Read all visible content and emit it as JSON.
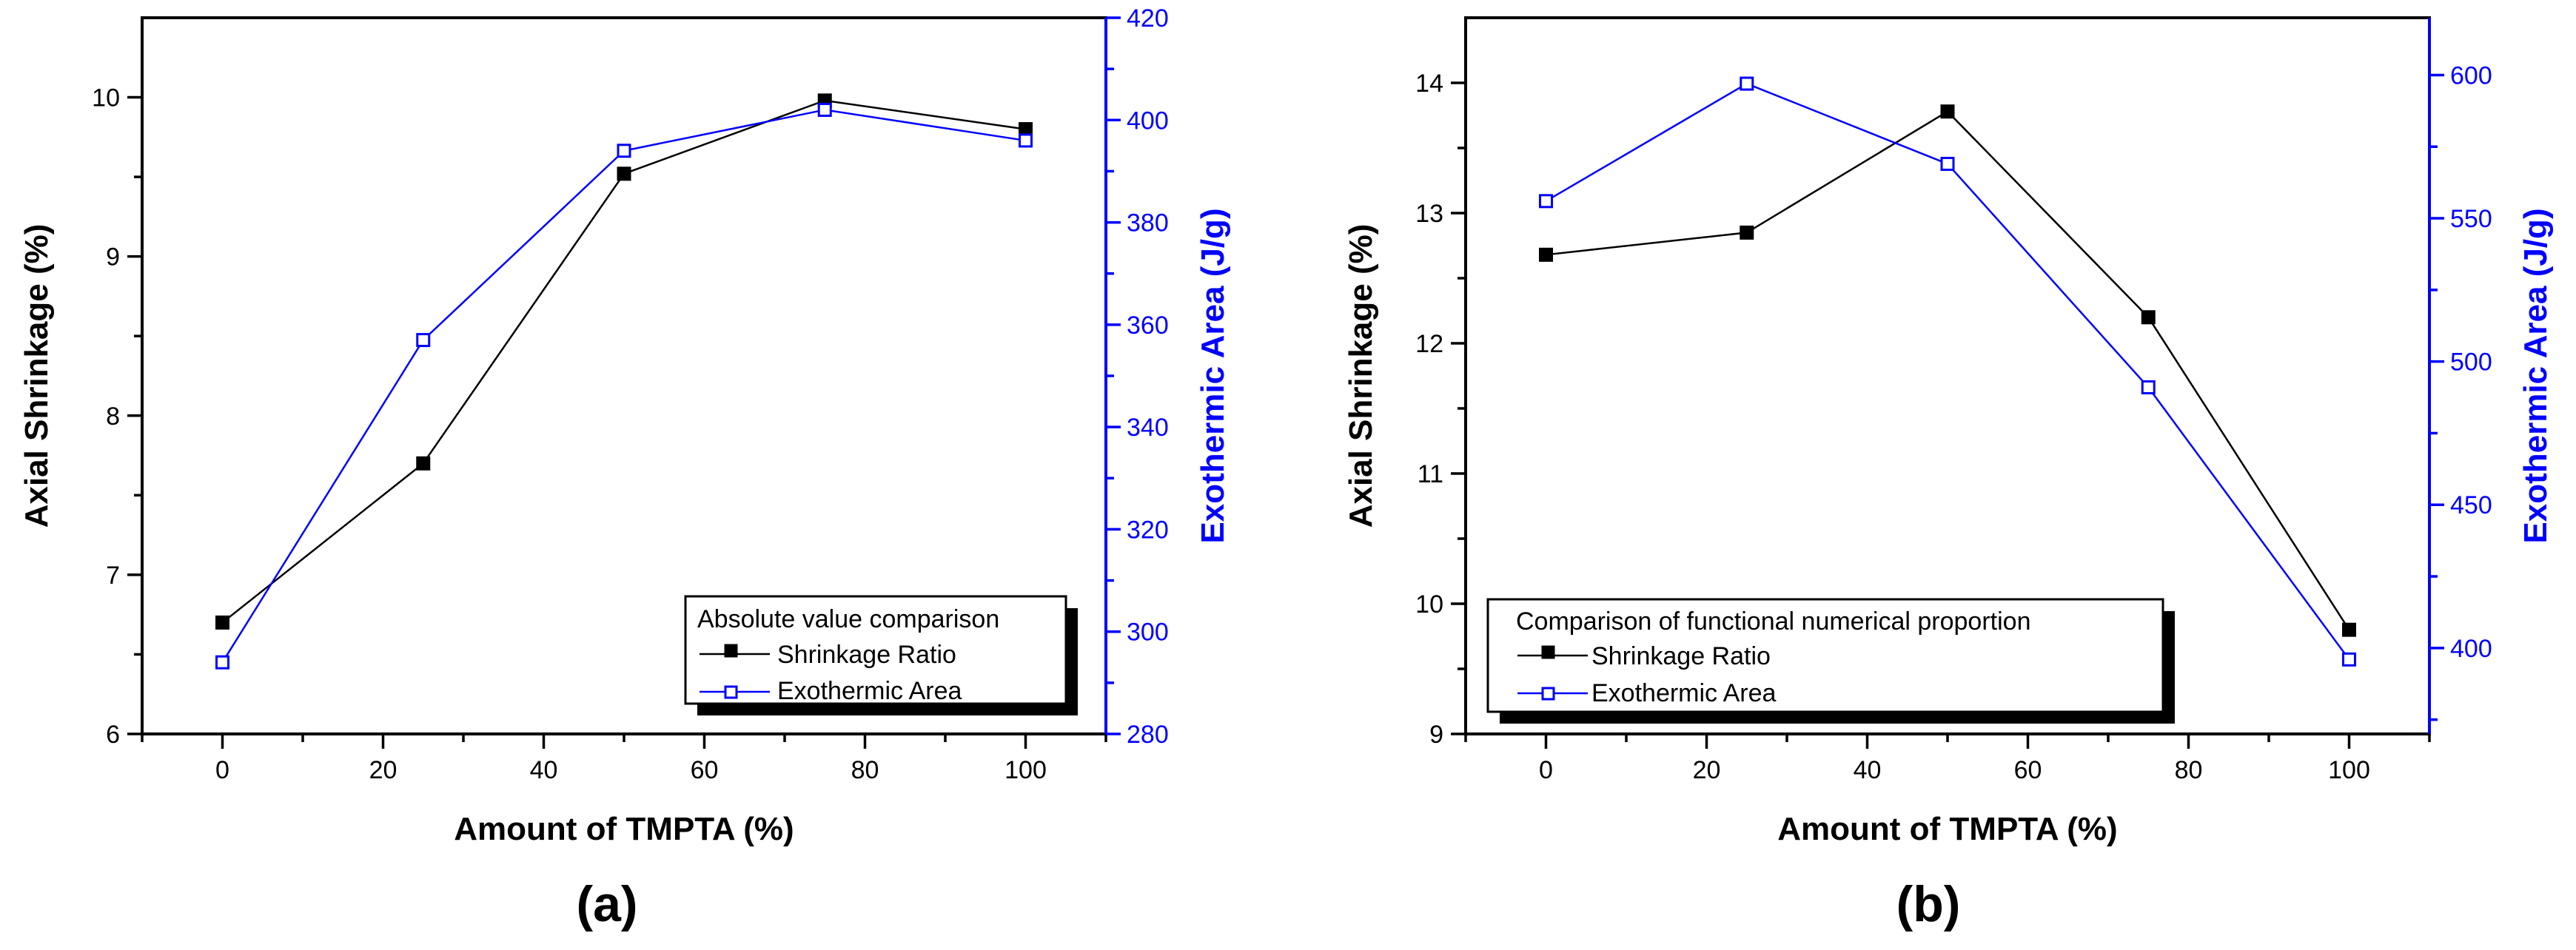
{
  "chart_data": [
    {
      "type": "line",
      "panel_label": "(a)",
      "xlabel": "Amount of TMPTA (%)",
      "ylabel_left": "Axial Shrinkage (%)",
      "ylabel_right": "Exothermic Area (J/g)",
      "xlim": [
        -10,
        110
      ],
      "xticks": [
        0,
        20,
        40,
        60,
        80,
        100
      ],
      "ylim_left": [
        6,
        10.5
      ],
      "yticks_left": [
        6,
        7,
        8,
        9,
        10
      ],
      "ylim_right": [
        280,
        420
      ],
      "yticks_right": [
        280,
        300,
        320,
        340,
        360,
        380,
        400,
        420
      ],
      "legend_title": "Absolute value comparison",
      "legend_placement": "bottom-right",
      "series": [
        {
          "name": "Shrinkage Ratio",
          "axis": "left",
          "marker": "filled-square",
          "color": "#000000",
          "x": [
            0,
            25,
            50,
            75,
            100
          ],
          "values": [
            6.7,
            7.7,
            9.52,
            9.98,
            9.8
          ]
        },
        {
          "name": "Exothermic Area",
          "axis": "right",
          "marker": "open-square",
          "color": "#0000ff",
          "x": [
            0,
            25,
            50,
            75,
            100
          ],
          "values": [
            294,
            357,
            394,
            402,
            396
          ]
        }
      ]
    },
    {
      "type": "line",
      "panel_label": "(b)",
      "xlabel": "Amount of TMPTA (%)",
      "ylabel_left": "Axial Shrinkage (%)",
      "ylabel_right": "Exothermic Area (J/g)",
      "xlim": [
        -10,
        110
      ],
      "xticks": [
        0,
        20,
        40,
        60,
        80,
        100
      ],
      "ylim_left": [
        9,
        14.5
      ],
      "yticks_left": [
        9,
        10,
        11,
        12,
        13,
        14
      ],
      "ylim_right": [
        370,
        620
      ],
      "yticks_right": [
        400,
        450,
        500,
        550,
        600
      ],
      "legend_title": "Comparison of functional numerical proportion",
      "legend_placement": "bottom-left",
      "series": [
        {
          "name": "Shrinkage Ratio",
          "axis": "left",
          "marker": "filled-square",
          "color": "#000000",
          "x": [
            0,
            25,
            50,
            75,
            100
          ],
          "values": [
            12.68,
            12.85,
            13.78,
            12.2,
            9.8
          ]
        },
        {
          "name": "Exothermic Area",
          "axis": "right",
          "marker": "open-square",
          "color": "#0000ff",
          "x": [
            0,
            25,
            50,
            75,
            100
          ],
          "values": [
            556,
            597,
            569,
            491,
            396
          ]
        }
      ]
    }
  ]
}
